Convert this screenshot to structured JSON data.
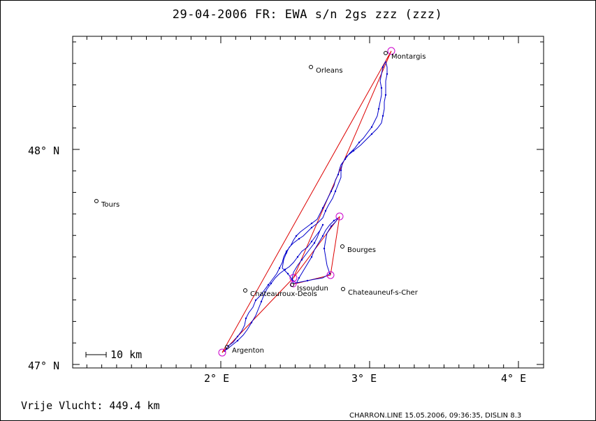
{
  "title": "29-04-2006   FR: EWA s/n 2gs   zzz (zzz)",
  "axes": {
    "y_labels": [
      "48° N",
      "47° N"
    ],
    "x_labels": [
      "2° E",
      "3° E",
      "4° E"
    ]
  },
  "scale_bar": "10 km",
  "cities": [
    {
      "name": "Montargis"
    },
    {
      "name": "Orleans"
    },
    {
      "name": "Tours"
    },
    {
      "name": "Bourges"
    },
    {
      "name": "Issoudun"
    },
    {
      "name": "Chateauroux-Deols"
    },
    {
      "name": "Chateauneuf-s-Cher"
    },
    {
      "name": "Argenton"
    }
  ],
  "footer": {
    "distance_label": "Vrije Vlucht:  449.4 km",
    "credit": "CHARRON.LINE 15.05.2006, 09:36:35, DISLIN 8.3"
  },
  "colors": {
    "track": "#0000cc",
    "course": "#dd0000",
    "turnpoint": "#cc00cc"
  }
}
